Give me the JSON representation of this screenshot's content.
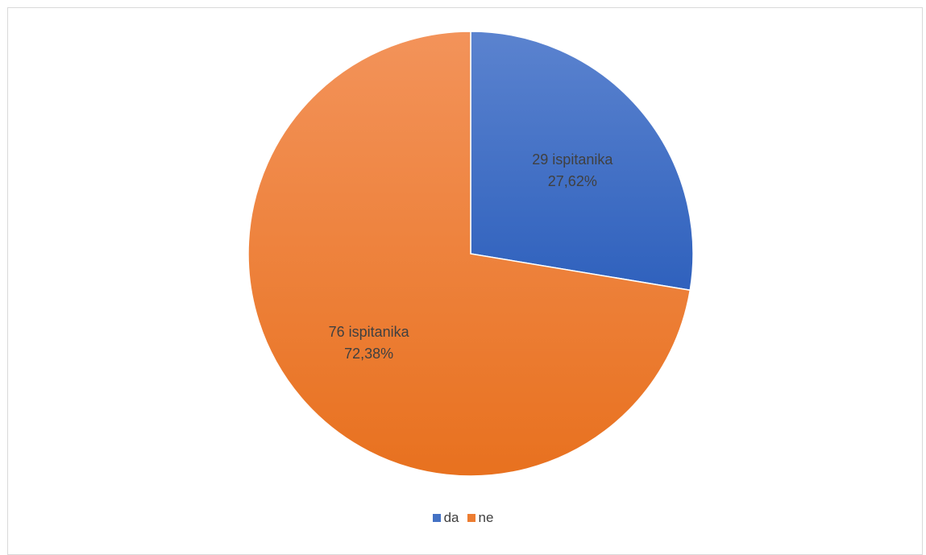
{
  "chart_data": {
    "type": "pie",
    "title": "",
    "series": [
      {
        "name": "",
        "slices": [
          {
            "label": "da",
            "value": 29,
            "percent": "27,62%",
            "count_label": "29 ispitanika",
            "color_top": "#5b83cf",
            "color_bottom": "#2f61bd"
          },
          {
            "label": "ne",
            "value": 76,
            "percent": "72,38%",
            "count_label": "76 ispitanika",
            "color_top": "#f3935a",
            "color_bottom": "#e8711f"
          }
        ]
      }
    ],
    "start_angle_deg": 0,
    "direction": "clockwise",
    "legend_position": "bottom"
  },
  "legend": {
    "items": [
      {
        "label": "da",
        "color": "#4472c4"
      },
      {
        "label": "ne",
        "color": "#ed7d31"
      }
    ]
  }
}
